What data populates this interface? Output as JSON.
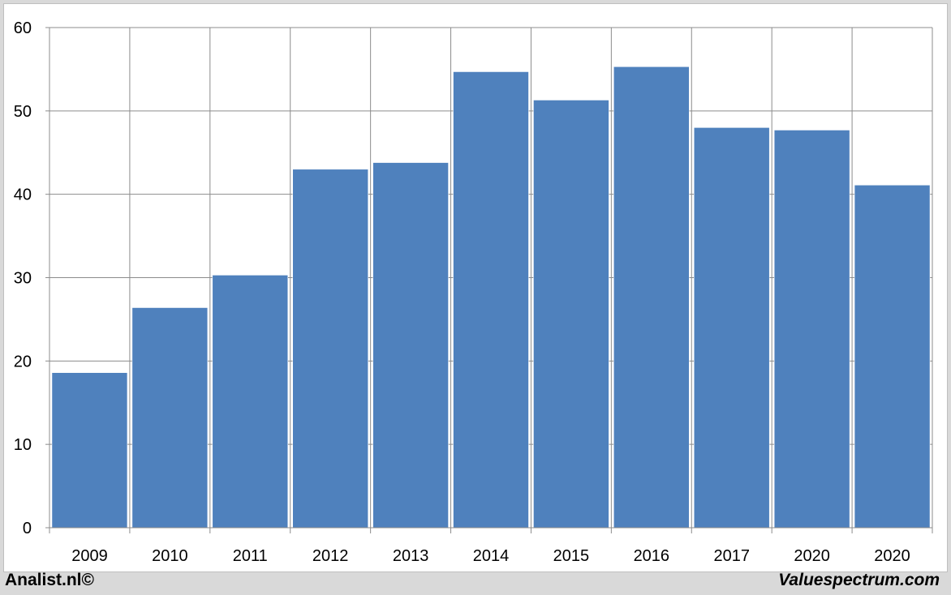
{
  "chart_data": {
    "type": "bar",
    "categories": [
      "2009",
      "2010",
      "2011",
      "2012",
      "2013",
      "2014",
      "2015",
      "2016",
      "2017",
      "2020",
      "2020"
    ],
    "values": [
      18.6,
      26.4,
      30.3,
      43.0,
      43.8,
      54.7,
      51.3,
      55.3,
      48.0,
      47.7,
      41.1
    ],
    "title": "",
    "xlabel": "",
    "ylabel": "",
    "ylim": [
      0,
      60
    ],
    "yticks": [
      "0",
      "10",
      "20",
      "30",
      "40",
      "50",
      "60"
    ],
    "grid": true,
    "legend": "none",
    "bar_color": "#4f81bd"
  },
  "footer": {
    "left": "Analist.nl©",
    "right": "Valuespectrum.com"
  }
}
